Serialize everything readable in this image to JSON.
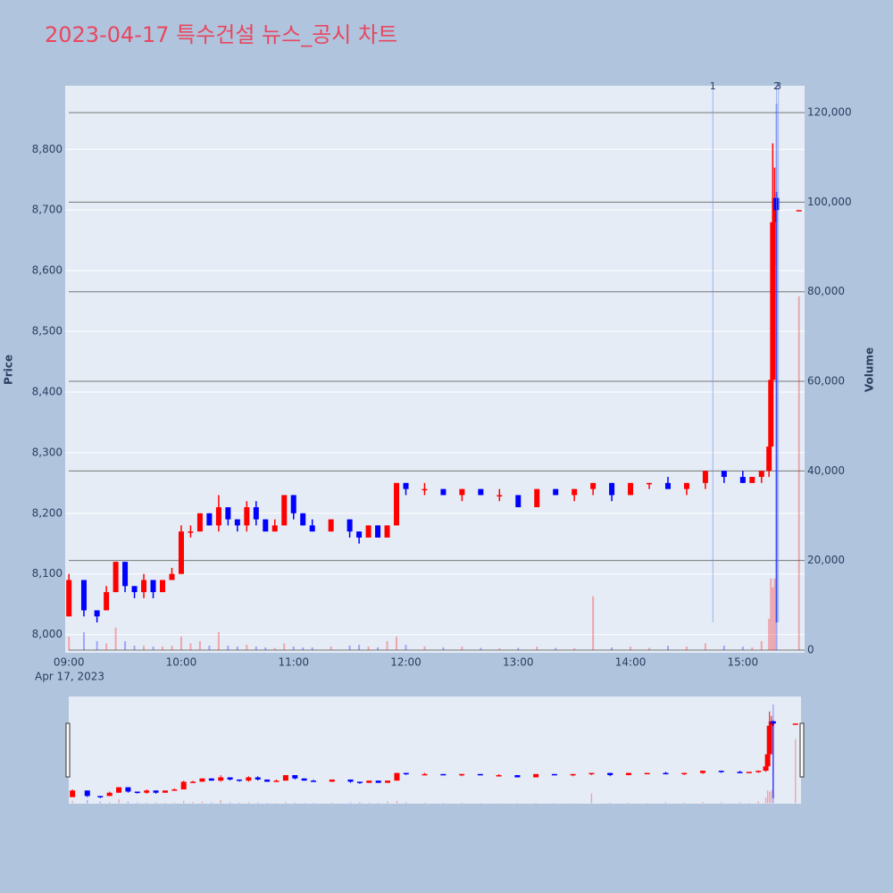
{
  "chart_data": {
    "type": "candlestick",
    "title": "2023-04-17 특수건설 뉴스_공시 차트",
    "y_label": "Price",
    "y2_label": "Volume",
    "x_date_label": "Apr 17, 2023",
    "up_color": "#ff0000",
    "down_color": "#0000ff",
    "x": [
      "09:00",
      "09:08",
      "09:15",
      "09:20",
      "09:25",
      "09:30",
      "09:35",
      "09:40",
      "09:45",
      "09:50",
      "09:55",
      "10:00",
      "10:05",
      "10:10",
      "10:15",
      "10:20",
      "10:25",
      "10:30",
      "10:35",
      "10:40",
      "10:45",
      "10:50",
      "10:55",
      "11:00",
      "11:05",
      "11:10",
      "11:20",
      "11:30",
      "11:35",
      "11:40",
      "11:45",
      "11:50",
      "11:55",
      "12:00",
      "12:10",
      "12:20",
      "12:30",
      "12:40",
      "12:50",
      "13:00",
      "13:10",
      "13:20",
      "13:30",
      "13:40",
      "13:50",
      "14:00",
      "14:10",
      "14:20",
      "14:30",
      "14:40",
      "14:50",
      "15:00",
      "15:05",
      "15:10",
      "15:14",
      "15:15",
      "15:16",
      "15:17",
      "15:18",
      "15:30"
    ],
    "open": [
      8030,
      8090,
      8040,
      8040,
      8070,
      8120,
      8080,
      8070,
      8090,
      8070,
      8090,
      8100,
      8170,
      8170,
      8200,
      8180,
      8210,
      8190,
      8180,
      8210,
      8190,
      8170,
      8180,
      8230,
      8200,
      8180,
      8170,
      8190,
      8170,
      8160,
      8180,
      8160,
      8180,
      8250,
      8240,
      8240,
      8230,
      8240,
      8230,
      8230,
      8210,
      8240,
      8230,
      8240,
      8250,
      8230,
      8250,
      8250,
      8240,
      8250,
      8270,
      8260,
      8250,
      8260,
      8270,
      8310,
      8420,
      8680,
      8720,
      8700
    ],
    "high": [
      8100,
      8090,
      8040,
      8080,
      8120,
      8120,
      8080,
      8100,
      8090,
      8090,
      8110,
      8180,
      8180,
      8200,
      8200,
      8230,
      8210,
      8190,
      8220,
      8220,
      8190,
      8190,
      8230,
      8230,
      8200,
      8190,
      8190,
      8190,
      8170,
      8180,
      8180,
      8180,
      8250,
      8250,
      8250,
      8240,
      8240,
      8240,
      8240,
      8230,
      8240,
      8240,
      8240,
      8250,
      8250,
      8250,
      8250,
      8260,
      8250,
      8270,
      8270,
      8270,
      8260,
      8270,
      8310,
      8440,
      8810,
      8770,
      8730,
      8700
    ],
    "low": [
      8030,
      8030,
      8020,
      8040,
      8070,
      8070,
      8060,
      8060,
      8060,
      8070,
      8090,
      8100,
      8160,
      8170,
      8180,
      8170,
      8180,
      8170,
      8170,
      8180,
      8170,
      8170,
      8180,
      8190,
      8180,
      8170,
      8170,
      8160,
      8150,
      8160,
      8160,
      8160,
      8180,
      8230,
      8230,
      8230,
      8220,
      8230,
      8220,
      8210,
      8210,
      8230,
      8220,
      8230,
      8220,
      8230,
      8240,
      8240,
      8230,
      8240,
      8250,
      8250,
      8250,
      8250,
      8260,
      8300,
      8400,
      8610,
      8020,
      8700
    ],
    "close": [
      8090,
      8040,
      8030,
      8070,
      8120,
      8080,
      8070,
      8090,
      8070,
      8090,
      8100,
      8170,
      8170,
      8200,
      8180,
      8210,
      8190,
      8180,
      8210,
      8190,
      8170,
      8180,
      8230,
      8200,
      8180,
      8170,
      8190,
      8170,
      8160,
      8180,
      8160,
      8180,
      8250,
      8240,
      8240,
      8230,
      8240,
      8230,
      8230,
      8210,
      8240,
      8230,
      8240,
      8250,
      8230,
      8250,
      8250,
      8240,
      8250,
      8270,
      8260,
      8250,
      8260,
      8270,
      8310,
      8420,
      8680,
      8720,
      8700,
      8700
    ],
    "volume": [
      3000,
      4000,
      2000,
      1500,
      5000,
      2000,
      1000,
      1000,
      800,
      800,
      1000,
      3000,
      1500,
      2000,
      1000,
      4000,
      1000,
      800,
      1200,
      800,
      600,
      500,
      1500,
      800,
      600,
      600,
      800,
      1000,
      1200,
      800,
      600,
      2000,
      3000,
      1200,
      800,
      600,
      800,
      500,
      400,
      500,
      800,
      500,
      400,
      12000,
      600,
      800,
      500,
      1000,
      800,
      1500,
      1000,
      800,
      600,
      2000,
      7000,
      16000,
      14000,
      16000,
      122000,
      79000
    ],
    "xlim": [
      "08:58",
      "15:33"
    ],
    "xticks": [
      "09:00",
      "10:00",
      "11:00",
      "12:00",
      "13:00",
      "14:00",
      "15:00"
    ],
    "ylim": [
      7970,
      8905
    ],
    "yticks": [
      {
        "value": 8000,
        "label": "8,000"
      },
      {
        "value": 8100,
        "label": "8,100"
      },
      {
        "value": 8200,
        "label": "8,200"
      },
      {
        "value": 8300,
        "label": "8,300"
      },
      {
        "value": 8400,
        "label": "8,400"
      },
      {
        "value": 8500,
        "label": "8,500"
      },
      {
        "value": 8600,
        "label": "8,600"
      },
      {
        "value": 8700,
        "label": "8,700"
      },
      {
        "value": 8800,
        "label": "8,800"
      }
    ],
    "y2lim": [
      -600,
      126000
    ],
    "y2ticks": [
      0,
      {
        "value": 20000,
        "label": "20,000"
      },
      {
        "value": 40000,
        "label": "40,000"
      },
      {
        "value": 60000,
        "label": "60,000"
      },
      {
        "value": 80000,
        "label": "80,000"
      },
      {
        "value": 100000,
        "label": "100,000"
      },
      {
        "value": 120000,
        "label": "120,000"
      }
    ],
    "events": [
      {
        "label": "1",
        "x": "14:44"
      },
      {
        "label": "2",
        "x": "15:18"
      },
      {
        "label": "3",
        "x": "15:19"
      }
    ],
    "grid": true
  }
}
